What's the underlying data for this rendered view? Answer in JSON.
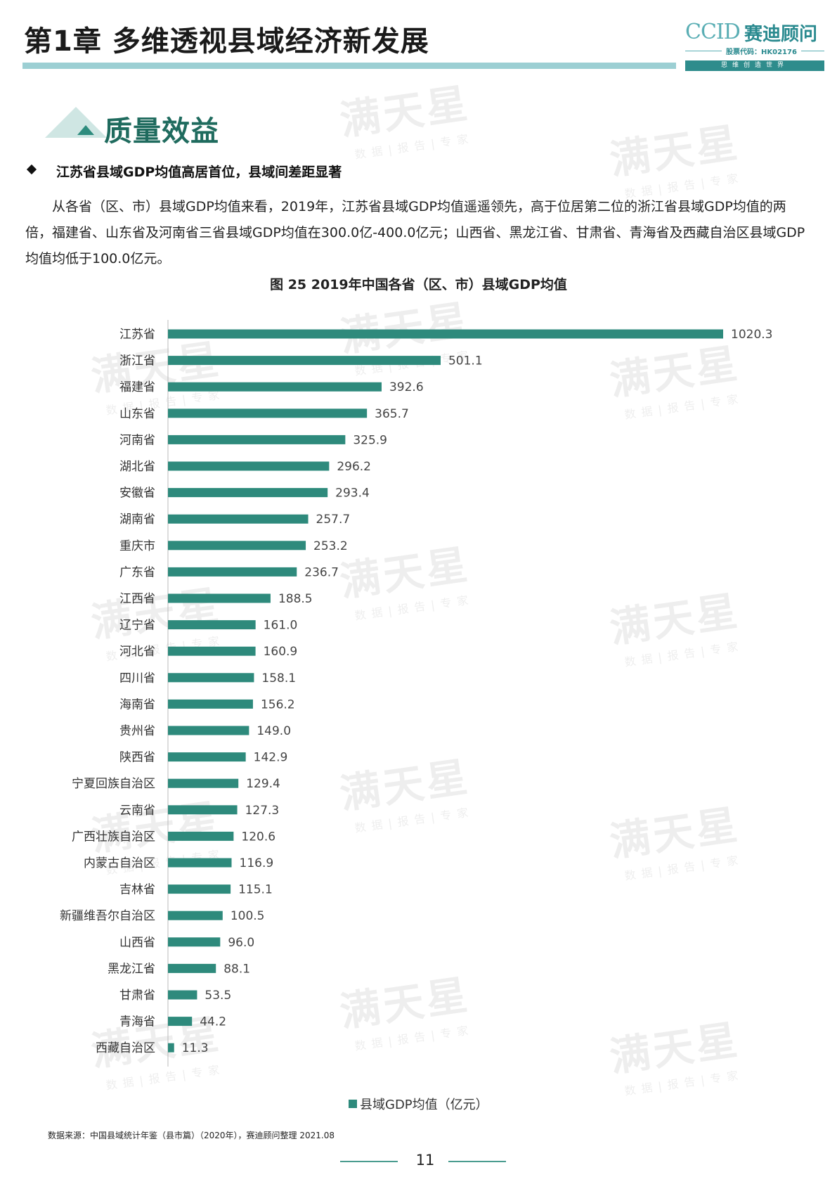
{
  "header": {
    "chapter_title": "第1章  多维透视县域经济新发展",
    "logo_ccid": "CCID",
    "logo_cn": "赛迪顾问",
    "logo_stock": "股票代码：HK02176",
    "logo_slogan": "思维创造世界"
  },
  "section": {
    "title": "质量效益",
    "bullet_heading": "江苏省县域GDP均值高居首位，县域间差距显著",
    "paragraph": "从各省（区、市）县域GDP均值来看，2019年，江苏省县域GDP均值遥遥领先，高于位居第二位的浙江省县域GDP均值的两倍，福建省、山东省及河南省三省县域GDP均值在300.0亿-400.0亿元；山西省、黑龙江省、甘肃省、青海省及西藏自治区县域GDP均值均低于100.0亿元。"
  },
  "figure": {
    "title": "图 25  2019年中国各省（区、市）县域GDP均值",
    "legend": "县域GDP均值（亿元）",
    "source": "数据来源：中国县域统计年鉴（县市篇）（2020年），赛迪顾问整理   2021.08"
  },
  "chart_data": {
    "type": "bar",
    "orientation": "horizontal",
    "title": "图 25  2019年中国各省（区、市）县域GDP均值",
    "xlabel": "",
    "ylabel": "",
    "categories": [
      "江苏省",
      "浙江省",
      "福建省",
      "山东省",
      "河南省",
      "湖北省",
      "安徽省",
      "湖南省",
      "重庆市",
      "广东省",
      "江西省",
      "辽宁省",
      "河北省",
      "四川省",
      "海南省",
      "贵州省",
      "陕西省",
      "宁夏回族自治区",
      "云南省",
      "广西壮族自治区",
      "内蒙古自治区",
      "吉林省",
      "新疆维吾尔自治区",
      "山西省",
      "黑龙江省",
      "甘肃省",
      "青海省",
      "西藏自治区"
    ],
    "series": [
      {
        "name": "县域GDP均值（亿元）",
        "values": [
          1020.3,
          501.1,
          392.6,
          365.7,
          325.9,
          296.2,
          293.4,
          257.7,
          253.2,
          236.7,
          188.5,
          161.0,
          160.9,
          158.1,
          156.2,
          149.0,
          142.9,
          129.4,
          127.3,
          120.6,
          116.9,
          115.1,
          100.5,
          96.0,
          88.1,
          53.5,
          44.2,
          11.3
        ]
      }
    ],
    "value_labels": [
      "1020.3",
      "501.1",
      "392.6",
      "365.7",
      "325.9",
      "296.2",
      "293.4",
      "257.7",
      "253.2",
      "236.7",
      "188.5",
      "161.0",
      "160.9",
      "158.1",
      "156.2",
      "149.0",
      "142.9",
      "129.4",
      "127.3",
      "120.6",
      "116.9",
      "115.1",
      "100.5",
      "96.0",
      "88.1",
      "53.5",
      "44.2",
      "11.3"
    ],
    "xlim": [
      0,
      1020.3
    ],
    "color": "#2e8a7c",
    "grid": false,
    "legend_position": "bottom"
  },
  "watermark": {
    "big": "满天星",
    "small": "数据|报告|专家"
  },
  "page_number": "11"
}
